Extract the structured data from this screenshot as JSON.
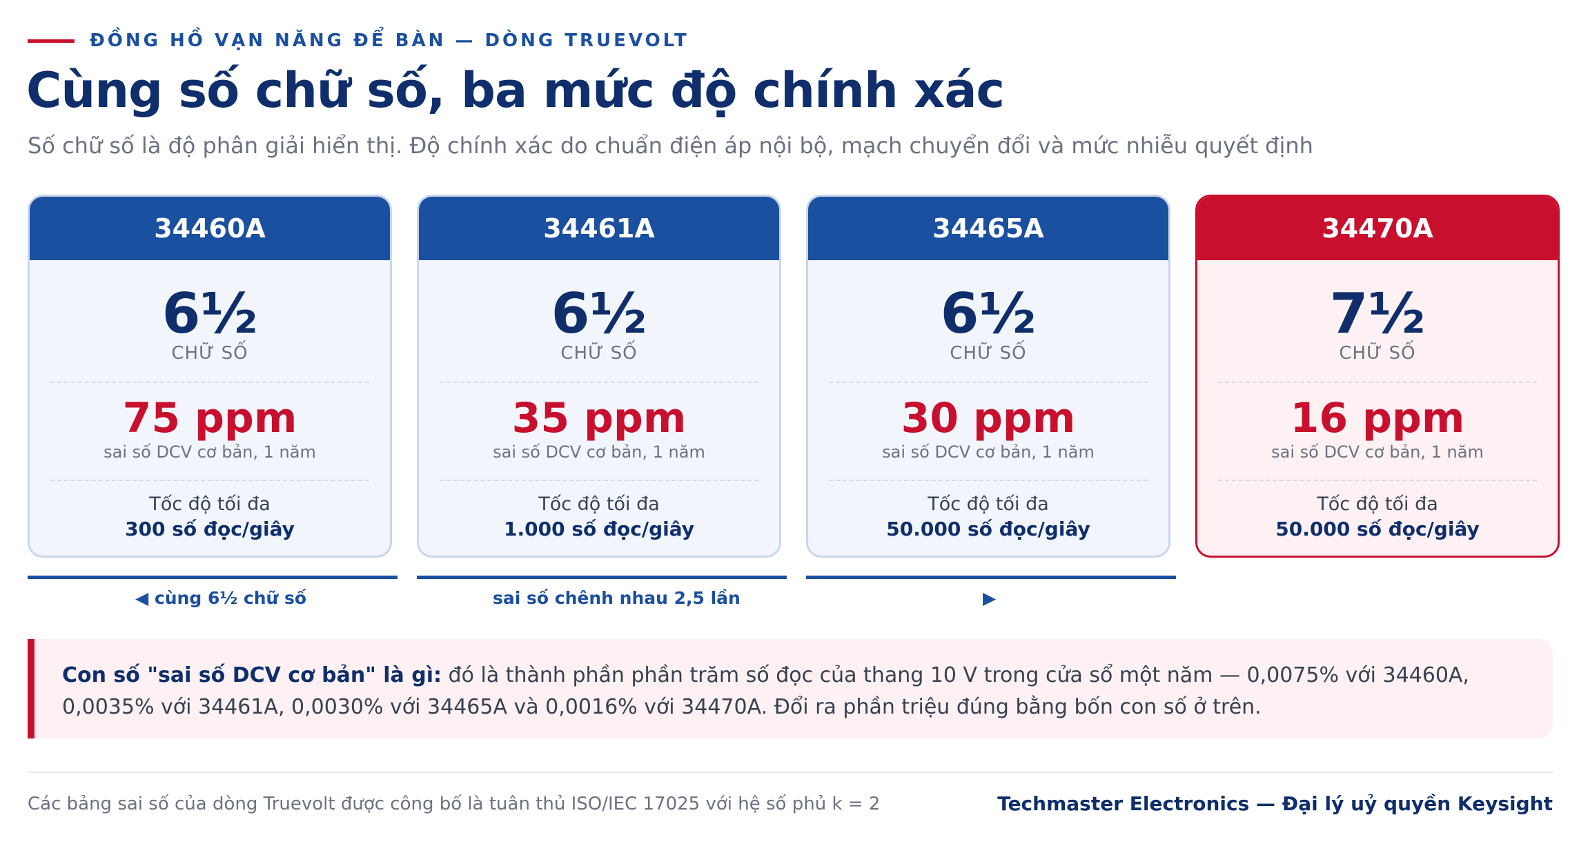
{
  "header": {
    "eyebrow": "ĐỒNG HỒ VẠN NĂNG ĐỂ BÀN — DÒNG TRUEVOLT",
    "title": "Cùng số chữ số, ba mức độ chính xác",
    "subtitle": "Số chữ số là độ phân giải hiển thị. Độ chính xác do chuẩn điện áp nội bộ, mạch chuyển đổi và mức nhiễu quyết định"
  },
  "cards": [
    {
      "model": "34460A",
      "digits": "6½",
      "digits_label": "CHỮ SỐ",
      "ppm": "75 ppm",
      "ppm_label": "sai số DCV cơ bản, 1 năm",
      "speed_label": "Tốc độ tối đa",
      "speed": "300 số đọc/giây"
    },
    {
      "model": "34461A",
      "digits": "6½",
      "digits_label": "CHỮ SỐ",
      "ppm": "35 ppm",
      "ppm_label": "sai số DCV cơ bản, 1 năm",
      "speed_label": "Tốc độ tối đa",
      "speed": "1.000 số đọc/giây"
    },
    {
      "model": "34465A",
      "digits": "6½",
      "digits_label": "CHỮ SỐ",
      "ppm": "30 ppm",
      "ppm_label": "sai số DCV cơ bản, 1 năm",
      "speed_label": "Tốc độ tối đa",
      "speed": "50.000 số đọc/giây"
    },
    {
      "model": "34470A",
      "digits": "7½",
      "digits_label": "CHỮ SỐ",
      "ppm": "16 ppm",
      "ppm_label": "sai số DCV cơ bản, 1 năm",
      "speed_label": "Tốc độ tối đa",
      "speed": "50.000 số đọc/giây"
    }
  ],
  "bracket": {
    "left_note": "◀ cùng 6½ chữ số",
    "mid_note": "sai số chênh nhau 2,5 lần",
    "right_arrow": "▶"
  },
  "callout": {
    "lead": "Con số \"sai số DCV cơ bản\" là gì:",
    "body": " đó là thành phần phần trăm số đọc của thang 10 V trong cửa sổ một năm — 0,0075% với 34460A, 0,0035% với 34461A, 0,0030% với 34465A và 0,0016% với 34470A. Đổi ra phần triệu đúng bằng bốn con số ở trên."
  },
  "footer": {
    "note": "Các bảng sai số của dòng Truevolt được công bố là tuân thủ ISO/IEC 17025 với hệ số phủ k = 2",
    "brand": "Techmaster Electronics — Đại lý uỷ quyền Keysight"
  },
  "colors": {
    "accent": "#c8102e",
    "primary": "#1b4fa0",
    "ink": "#0f2e6b"
  }
}
